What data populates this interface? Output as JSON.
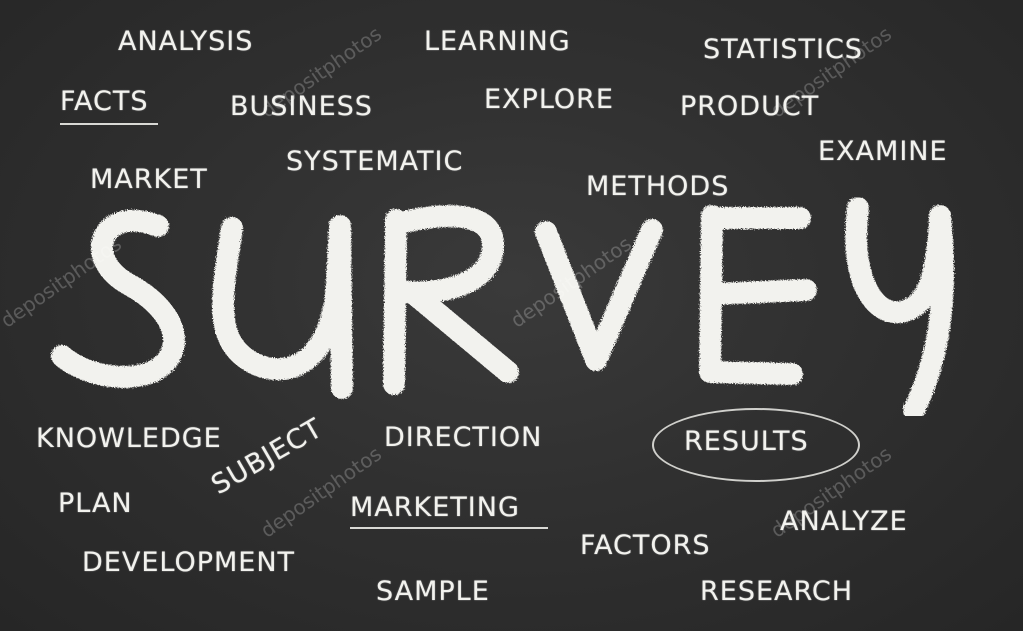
{
  "title_word": "SURVEY",
  "watermark": "depositphotos",
  "words": {
    "analysis": "ANALYSIS",
    "learning": "LEARNING",
    "statistics": "STATISTICS",
    "facts": "FACTS",
    "business": "BUSINESS",
    "explore": "EXPLORE",
    "product": "PRODUCT",
    "examine": "EXAMINE",
    "market": "MARKET",
    "systematic": "SYSTEMATIC",
    "methods": "METHODS",
    "knowledge": "KNOWLEDGE",
    "direction": "DIRECTION",
    "results": "RESULTS",
    "subject": "SUBJECT",
    "plan": "PLAN",
    "marketing": "MARKETING",
    "analyze": "ANALYZE",
    "development": "DEVELOPMENT",
    "factors": "FACTORS",
    "sample": "SAMPLE",
    "research": "RESEARCH"
  },
  "colors": {
    "board": "#2c2c2c",
    "chalk": "#f2f2ee"
  }
}
